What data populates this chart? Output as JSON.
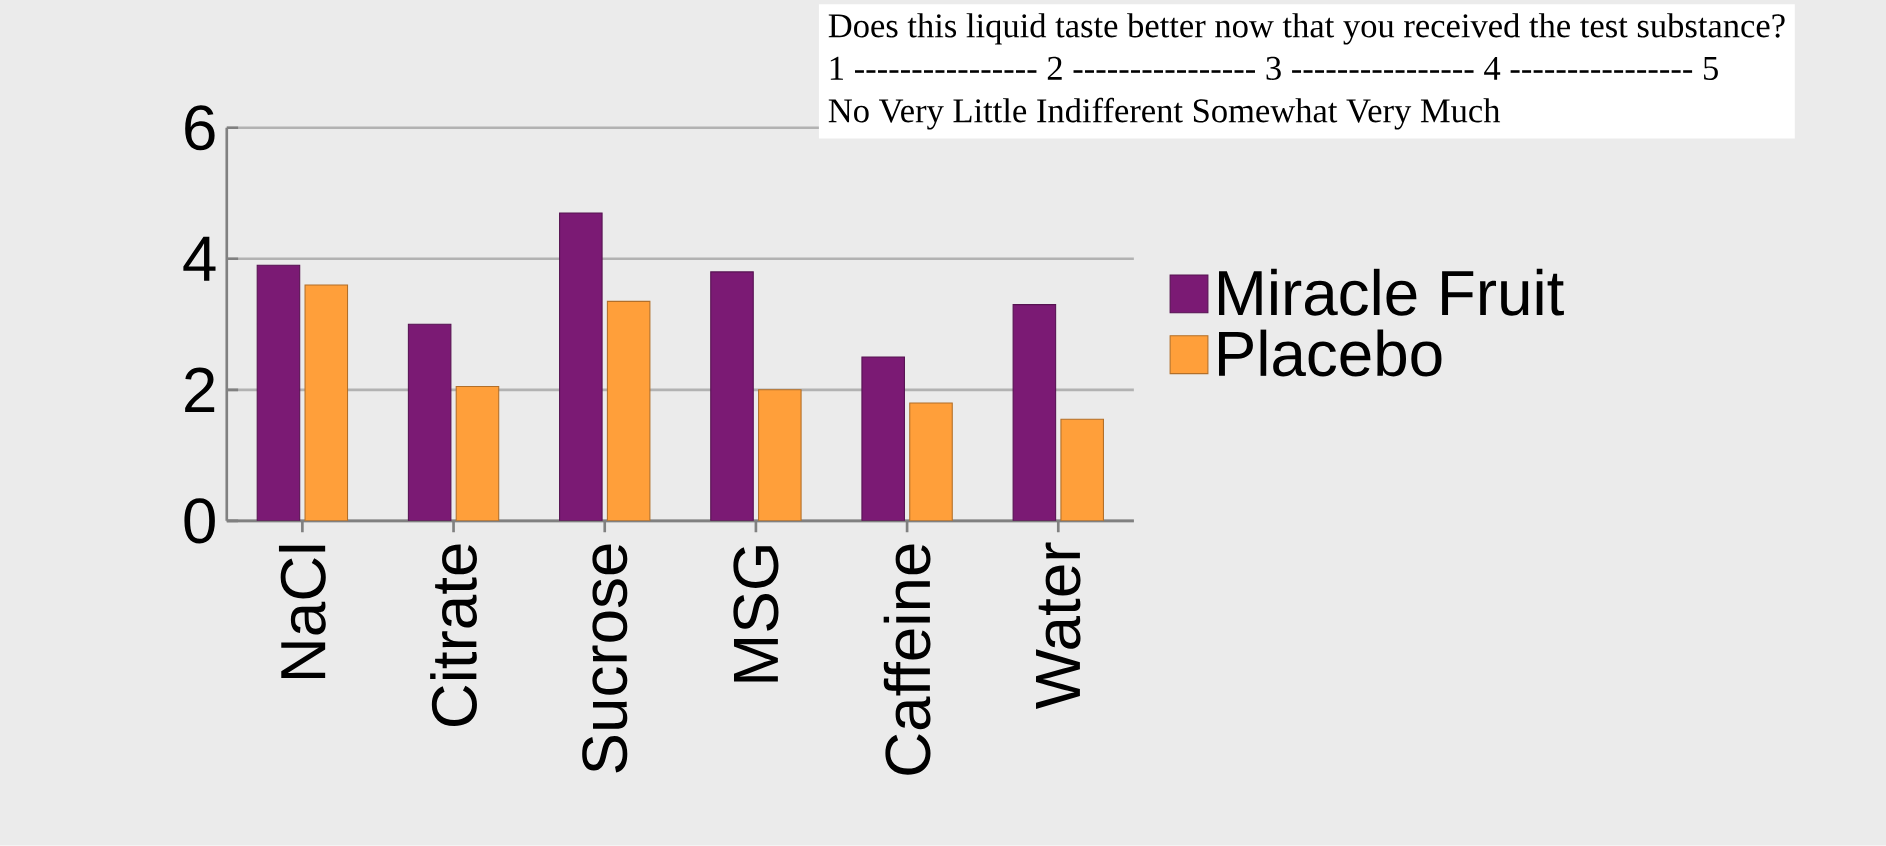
{
  "chart_data": {
    "type": "bar",
    "annotations": [
      "Does this liquid taste better now that you received the test substance?",
      "1 ---------------- 2 ---------------- 3 ---------------- 4 ---------------- 5",
      "No Very Little Indifferent Somewhat Very Much"
    ],
    "categories": [
      "NaCl",
      "Citrate",
      "Sucrose",
      "MSG",
      "Caffeine",
      "Water"
    ],
    "series": [
      {
        "name": "Miracle Fruit",
        "color": "#7b1a74",
        "values": [
          3.9,
          3.0,
          4.7,
          3.8,
          2.5,
          3.3
        ]
      },
      {
        "name": "Placebo",
        "color": "#ff9f3a",
        "values": [
          3.6,
          2.05,
          3.35,
          2.0,
          1.8,
          1.55
        ]
      }
    ],
    "ylim": [
      0,
      6
    ],
    "yticks": [
      0,
      2,
      4,
      6
    ],
    "grid": "y",
    "legend": "right"
  }
}
